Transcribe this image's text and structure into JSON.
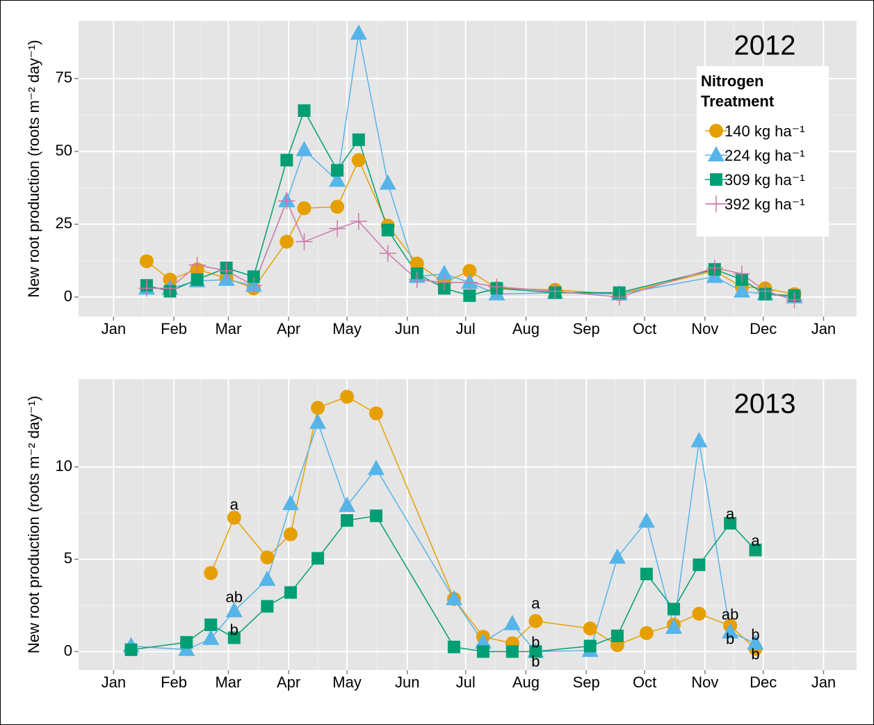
{
  "chart_data": [
    {
      "type": "line",
      "title": "2012",
      "ylabel": "New root production (roots m⁻² day⁻¹)",
      "x": [
        17,
        29,
        43,
        58,
        72,
        89,
        98,
        115,
        126,
        141,
        156,
        170,
        183,
        197,
        227,
        260,
        309,
        323,
        335,
        350
      ],
      "xlim": [
        -18,
        382
      ],
      "xticks": [
        {
          "value": 0,
          "label": "Jan"
        },
        {
          "value": 31,
          "label": "Feb"
        },
        {
          "value": 59,
          "label": "Mar"
        },
        {
          "value": 90,
          "label": "Apr"
        },
        {
          "value": 120,
          "label": "May"
        },
        {
          "value": 151,
          "label": "Jun"
        },
        {
          "value": 181,
          "label": "Jul"
        },
        {
          "value": 212,
          "label": "Aug"
        },
        {
          "value": 243,
          "label": "Sep"
        },
        {
          "value": 273,
          "label": "Oct"
        },
        {
          "value": 304,
          "label": "Nov"
        },
        {
          "value": 334,
          "label": "Dec"
        },
        {
          "value": 365,
          "label": "Jan"
        }
      ],
      "ylim": [
        -6.7,
        94.8
      ],
      "yticks": [
        0,
        25,
        50,
        75
      ],
      "grid": true,
      "legend": "top-right",
      "legend_title": "Nitrogen Treatment",
      "series": [
        {
          "name": "140 kg ha⁻¹",
          "color": "#E69F00",
          "marker": "circle",
          "values": [
            12.3,
            6,
            9.5,
            6.5,
            3,
            19,
            30.5,
            31,
            47,
            24.5,
            11.5,
            5,
            9,
            3,
            2.5,
            1,
            9,
            3.5,
            3,
            1
          ]
        },
        {
          "name": "224 kg ha⁻¹",
          "color": "#56B4E9",
          "marker": "triangle",
          "values": [
            3,
            3,
            5.5,
            6,
            4,
            33,
            50.5,
            40,
            90.5,
            39,
            7,
            8,
            5,
            1,
            1.5,
            1,
            7,
            2,
            1,
            0
          ]
        },
        {
          "name": "309 kg ha⁻¹",
          "color": "#009E73",
          "marker": "square",
          "values": [
            4,
            2,
            6,
            10,
            7,
            47,
            64,
            43.5,
            54,
            23,
            8,
            3,
            0.5,
            3,
            1.5,
            1.5,
            9.5,
            6,
            1,
            0.5
          ]
        },
        {
          "name": "392 kg ha⁻¹",
          "color": "#CC79A7",
          "marker": "plus",
          "values": [
            3,
            3,
            11,
            9,
            4,
            33,
            19,
            23.5,
            26,
            15,
            6,
            5,
            5,
            3.5,
            2,
            0,
            10,
            8,
            2,
            -1
          ]
        }
      ]
    },
    {
      "type": "line",
      "title": "2013",
      "ylabel": "New root production (roots m⁻² day⁻¹)",
      "x": [
        9,
        37.5,
        50,
        62,
        79,
        91,
        105,
        120,
        135,
        175,
        190,
        205,
        217,
        245,
        259,
        274,
        288,
        301,
        317,
        330
      ],
      "xlim": [
        -18,
        382
      ],
      "xticks": [
        {
          "value": 0,
          "label": "Jan"
        },
        {
          "value": 31,
          "label": "Feb"
        },
        {
          "value": 59,
          "label": "Mar"
        },
        {
          "value": 90,
          "label": "Apr"
        },
        {
          "value": 120,
          "label": "May"
        },
        {
          "value": 151,
          "label": "Jun"
        },
        {
          "value": 181,
          "label": "Jul"
        },
        {
          "value": 212,
          "label": "Aug"
        },
        {
          "value": 243,
          "label": "Sep"
        },
        {
          "value": 273,
          "label": "Oct"
        },
        {
          "value": 304,
          "label": "Nov"
        },
        {
          "value": 334,
          "label": "Dec"
        },
        {
          "value": 365,
          "label": "Jan"
        }
      ],
      "ylim": [
        -1,
        14.75
      ],
      "yticks": [
        0,
        5,
        10
      ],
      "grid": true,
      "series": [
        {
          "color": "#E69F00",
          "marker": "circle",
          "values": [
            null,
            null,
            4.25,
            7.25,
            5.1,
            6.35,
            13.2,
            13.8,
            12.9,
            2.85,
            0.8,
            0.45,
            1.65,
            1.25,
            0.35,
            1,
            1.45,
            2.05,
            1.4,
            0.15
          ]
        },
        {
          "color": "#56B4E9",
          "marker": "triangle",
          "values": [
            0.3,
            0.1,
            0.7,
            2.2,
            3.9,
            8,
            12.4,
            7.9,
            9.9,
            2.85,
            0.5,
            1.5,
            0,
            0.05,
            5.1,
            7.05,
            1.3,
            11.4,
            1.05,
            0.45
          ]
        },
        {
          "color": "#009E73",
          "marker": "square",
          "values": [
            0.1,
            0.5,
            1.45,
            0.75,
            2.45,
            3.2,
            5.05,
            7.1,
            7.35,
            0.25,
            0,
            0,
            0,
            0.3,
            0.85,
            4.2,
            2.3,
            4.7,
            6.95,
            5.5
          ]
        }
      ],
      "annotations": [
        {
          "text": "a",
          "x": 62,
          "y": 7.9
        },
        {
          "text": "ab",
          "x": 62,
          "y": 2.9
        },
        {
          "text": "b",
          "x": 62,
          "y": 1.13
        },
        {
          "text": "a",
          "x": 217,
          "y": 2.55
        },
        {
          "text": "b",
          "x": 217,
          "y": 0.45
        },
        {
          "text": "b",
          "x": 217,
          "y": -0.6
        },
        {
          "text": "a",
          "x": 317,
          "y": 7.4
        },
        {
          "text": "ab",
          "x": 317,
          "y": 1.95
        },
        {
          "text": "b",
          "x": 317,
          "y": 0.64
        },
        {
          "text": "a",
          "x": 330,
          "y": 5.94
        },
        {
          "text": "b",
          "x": 330,
          "y": 0.86
        },
        {
          "text": "b",
          "x": 330,
          "y": -0.2
        }
      ]
    }
  ]
}
